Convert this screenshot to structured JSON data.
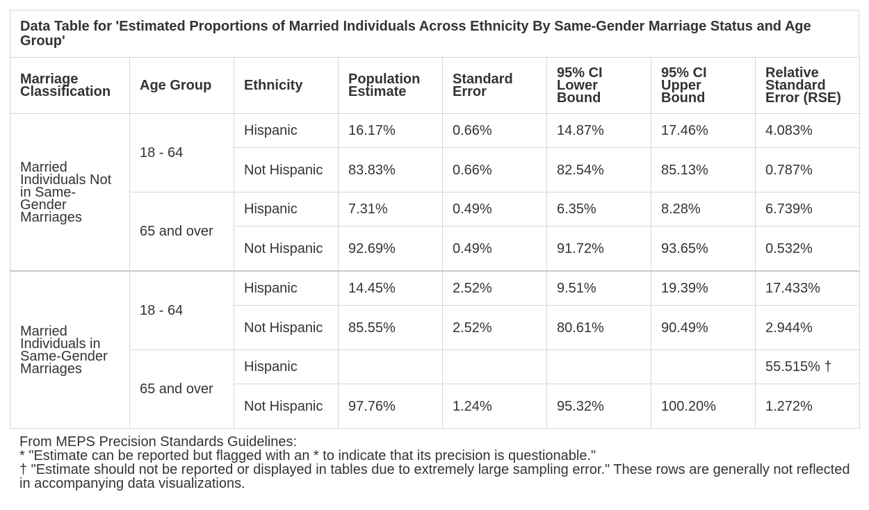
{
  "title": "Data Table for 'Estimated Proportions of Married Individuals Across Ethnicity By Same-Gender Marriage Status and Age Group'",
  "columns": [
    "Marriage Classification",
    "Age Group",
    "Ethnicity",
    "Population Estimate",
    "Standard Error",
    "95% CI Lower Bound",
    "95% CI Upper Bound",
    "Relative Standard Error (RSE)"
  ],
  "groups": [
    {
      "classification": "Married Individuals Not in Same-Gender Marriages",
      "age_groups": [
        {
          "age": "18 - 64",
          "rows": [
            {
              "ethnicity": "Hispanic",
              "estimate": "16.17%",
              "se": "0.66%",
              "lower": "14.87%",
              "upper": "17.46%",
              "rse": "4.083%"
            },
            {
              "ethnicity": "Not Hispanic",
              "estimate": "83.83%",
              "se": "0.66%",
              "lower": "82.54%",
              "upper": "85.13%",
              "rse": "0.787%"
            }
          ]
        },
        {
          "age": "65 and over",
          "rows": [
            {
              "ethnicity": "Hispanic",
              "estimate": "7.31%",
              "se": "0.49%",
              "lower": "6.35%",
              "upper": "8.28%",
              "rse": "6.739%"
            },
            {
              "ethnicity": "Not Hispanic",
              "estimate": "92.69%",
              "se": "0.49%",
              "lower": "91.72%",
              "upper": "93.65%",
              "rse": "0.532%"
            }
          ]
        }
      ]
    },
    {
      "classification": "Married Individuals in Same-Gender Marriages",
      "age_groups": [
        {
          "age": "18 - 64",
          "rows": [
            {
              "ethnicity": "Hispanic",
              "estimate": "14.45%",
              "se": "2.52%",
              "lower": "9.51%",
              "upper": "19.39%",
              "rse": "17.433%"
            },
            {
              "ethnicity": "Not Hispanic",
              "estimate": "85.55%",
              "se": "2.52%",
              "lower": "80.61%",
              "upper": "90.49%",
              "rse": "2.944%"
            }
          ]
        },
        {
          "age": "65 and over",
          "rows": [
            {
              "ethnicity": "Hispanic",
              "estimate": "",
              "se": "",
              "lower": "",
              "upper": "",
              "rse": "55.515% †"
            },
            {
              "ethnicity": "Not Hispanic",
              "estimate": "97.76%",
              "se": "1.24%",
              "lower": "95.32%",
              "upper": "100.20%",
              "rse": "1.272%"
            }
          ]
        }
      ]
    }
  ],
  "footnotes": [
    "From MEPS Precision Standards Guidelines:",
    "* \"Estimate can be reported but flagged with an * to indicate that its precision is questionable.\"",
    "† \"Estimate should not be reported or displayed in tables due to extremely large sampling error.\" These rows are generally not reflected in accompanying data visualizations."
  ]
}
